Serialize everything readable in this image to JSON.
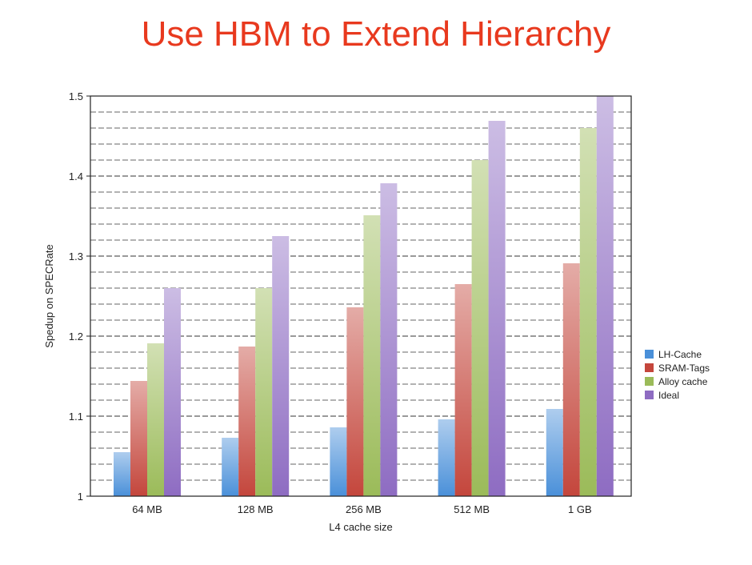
{
  "slide": {
    "title": "Use HBM to Extend Hierarchy"
  },
  "chart_data": {
    "type": "bar",
    "title": "",
    "xlabel": "L4 cache size",
    "ylabel": "Spedup on SPECRate",
    "categories": [
      "64 MB",
      "128 MB",
      "256 MB",
      "512 MB",
      "1 GB"
    ],
    "ylim": [
      1,
      1.5
    ],
    "yticks": [
      "1",
      "1.1",
      "1.2",
      "1.3",
      "1.4",
      "1.5"
    ],
    "ytick_values": [
      1,
      1.1,
      1.2,
      1.3,
      1.4,
      1.5
    ],
    "grid": true,
    "legend_position": "right",
    "series": [
      {
        "name": "LH-Cache",
        "color": "#4a90d9",
        "values": [
          1.055,
          1.073,
          1.086,
          1.096,
          1.109
        ]
      },
      {
        "name": "SRAM-Tags",
        "color": "#c4463c",
        "values": [
          1.144,
          1.187,
          1.236,
          1.265,
          1.291
        ]
      },
      {
        "name": "Alloy cache",
        "color": "#9bbb59",
        "values": [
          1.191,
          1.26,
          1.351,
          1.42,
          1.46
        ]
      },
      {
        "name": "Ideal",
        "color": "#8e6cc2",
        "values": [
          1.26,
          1.325,
          1.391,
          1.469,
          1.5
        ]
      }
    ]
  }
}
